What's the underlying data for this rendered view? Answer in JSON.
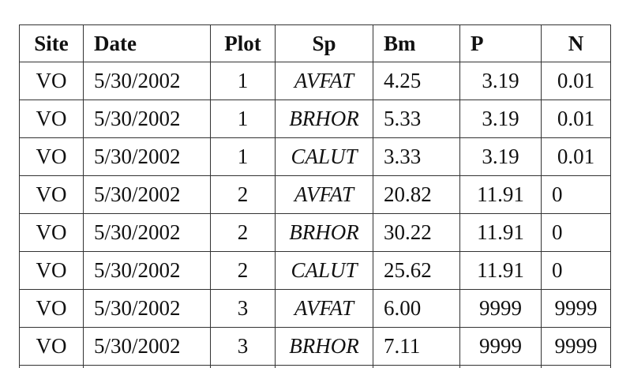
{
  "table": {
    "headers": [
      "Site",
      "Date",
      "Plot",
      "Sp",
      "Bm",
      "P",
      "N"
    ],
    "rows": [
      [
        "VO",
        "5/30/2002",
        "1",
        "AVFAT",
        "4.25",
        "3.19",
        "0.01"
      ],
      [
        "VO",
        "5/30/2002",
        "1",
        "BRHOR",
        "5.33",
        "3.19",
        "0.01"
      ],
      [
        "VO",
        "5/30/2002",
        "1",
        "CALUT",
        "3.33",
        "3.19",
        "0.01"
      ],
      [
        "VO",
        "5/30/2002",
        "2",
        "AVFAT",
        "20.82",
        "11.91",
        "0"
      ],
      [
        "VO",
        "5/30/2002",
        "2",
        "BRHOR",
        "30.22",
        "11.91",
        "0"
      ],
      [
        "VO",
        "5/30/2002",
        "2",
        "CALUT",
        "25.62",
        "11.91",
        "0"
      ],
      [
        "VO",
        "5/30/2002",
        "3",
        "AVFAT",
        "6.00",
        "9999",
        "9999"
      ],
      [
        "VO",
        "5/30/2002",
        "3",
        "BRHOR",
        "7.11",
        "9999",
        "9999"
      ]
    ]
  }
}
